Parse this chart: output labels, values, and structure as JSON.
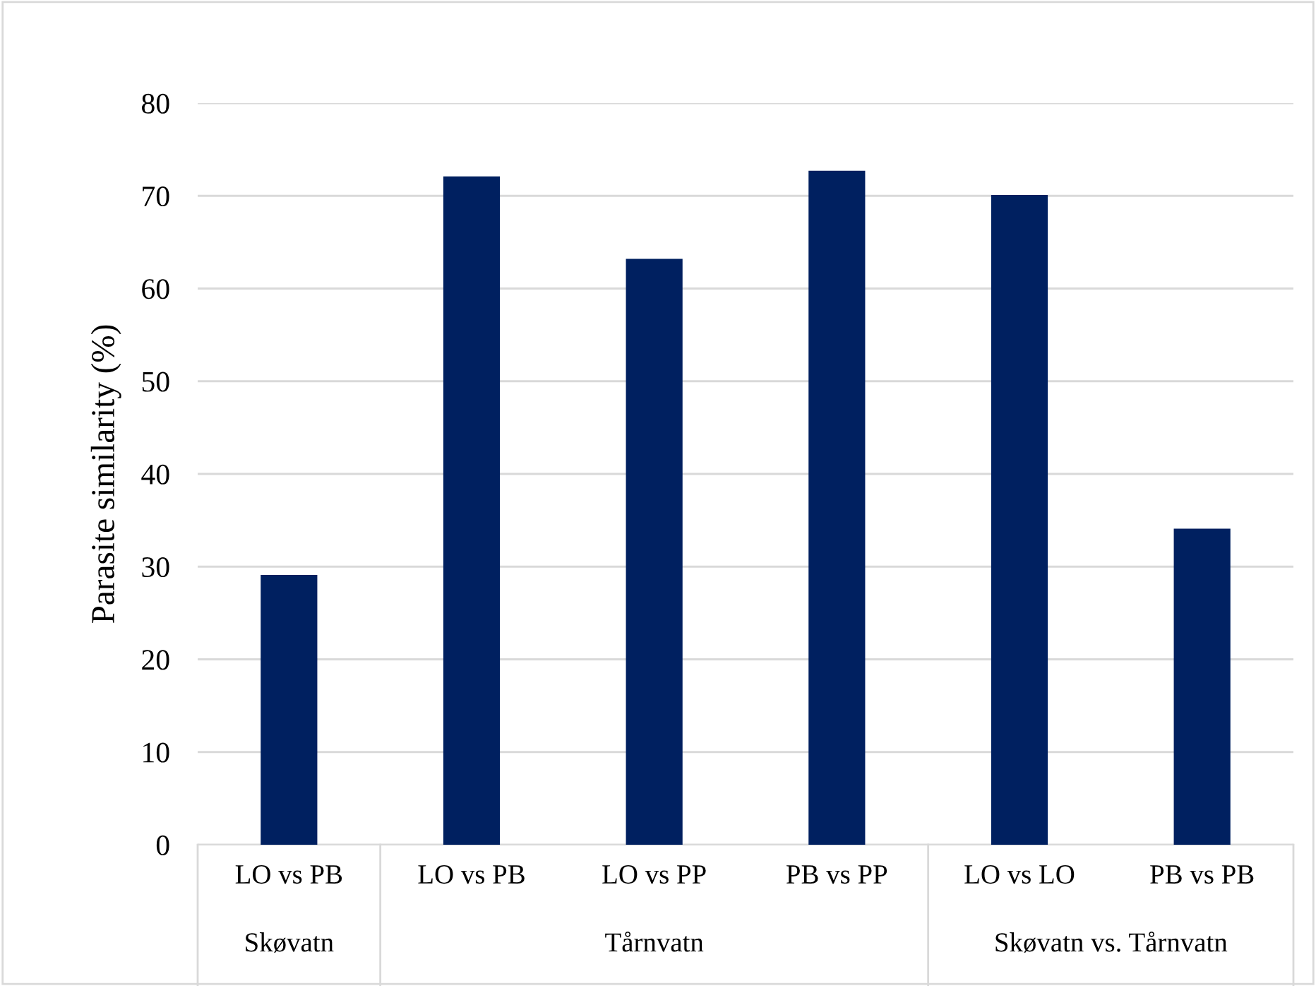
{
  "chart_data": {
    "type": "bar",
    "ylabel": "Parasite similarity (%)",
    "categories": [
      "LO vs PB",
      "LO vs PB",
      "LO vs PP",
      "PB vs PP",
      "LO vs LO",
      "PB vs PB"
    ],
    "values": [
      29.1,
      72.1,
      63.2,
      72.7,
      70.1,
      34.1
    ],
    "color": "#002060",
    "ylim": [
      0,
      80
    ],
    "yticks": [
      0,
      10,
      20,
      30,
      40,
      50,
      60,
      70,
      80
    ],
    "grid": "y",
    "annotations": [
      "Skøvatn",
      "Tårnvatn",
      "Skøvatn vs. Tårnvatn"
    ]
  }
}
